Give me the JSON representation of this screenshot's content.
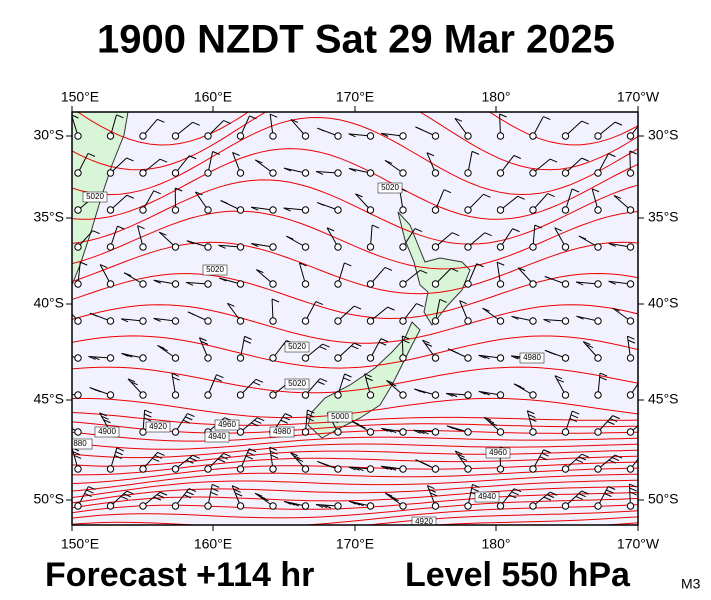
{
  "title": "1900 NZDT Sat 29 Mar 2025",
  "forecast": "Forecast +114 hr",
  "level": "Level 550 hPa",
  "model": "M3",
  "map": {
    "lon_labels": [
      "150°E",
      "160°E",
      "170°E",
      "180°",
      "170°W"
    ],
    "lat_labels": [
      "30°S",
      "35°S",
      "40°S",
      "45°S",
      "50°S"
    ],
    "contour_labels": [
      "5020",
      "5020",
      "5020",
      "5020",
      "5020",
      "5000",
      "4980",
      "4960",
      "4940",
      "4920",
      "4900",
      "880",
      "4980",
      "4960",
      "4940",
      "4920"
    ]
  }
}
